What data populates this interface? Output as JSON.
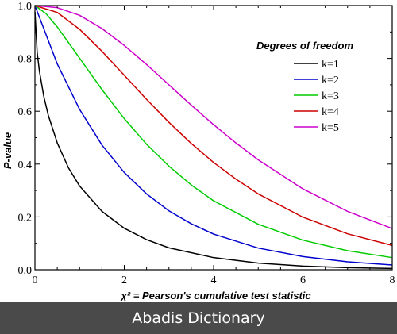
{
  "chart_data": {
    "type": "line",
    "xlabel": "χ² = Pearson's cumulative test statistic",
    "ylabel": "P-value",
    "xlim": [
      0,
      8
    ],
    "ylim": [
      0,
      1
    ],
    "x_ticks": [
      "0",
      "2",
      "4",
      "6",
      "8"
    ],
    "y_ticks": [
      "0.0",
      "0.2",
      "0.4",
      "0.6",
      "0.8",
      "1.0"
    ],
    "grid": false,
    "legend": {
      "title": "Degrees of freedom",
      "placement": "top-right"
    },
    "series": [
      {
        "name": "k=1",
        "color": "#000000",
        "x": [
          0.001,
          0.05,
          0.1,
          0.2,
          0.3,
          0.5,
          0.75,
          1,
          1.5,
          2,
          2.5,
          3,
          4,
          5,
          6,
          7,
          8
        ],
        "y": [
          0.975,
          0.823,
          0.752,
          0.655,
          0.584,
          0.48,
          0.386,
          0.317,
          0.221,
          0.157,
          0.114,
          0.083,
          0.046,
          0.025,
          0.014,
          0.008,
          0.005
        ]
      },
      {
        "name": "k=2",
        "color": "#0000cc",
        "x": [
          0,
          0.5,
          1,
          1.5,
          2,
          2.5,
          3,
          3.5,
          4,
          5,
          6,
          7,
          8
        ],
        "y": [
          1.0,
          0.779,
          0.607,
          0.472,
          0.368,
          0.287,
          0.223,
          0.174,
          0.135,
          0.082,
          0.05,
          0.03,
          0.018
        ]
      },
      {
        "name": "k=3",
        "color": "#00cc00",
        "x": [
          0,
          0.25,
          0.5,
          1,
          1.5,
          2,
          2.5,
          3,
          3.5,
          4,
          5,
          6,
          7,
          8
        ],
        "y": [
          1.0,
          0.969,
          0.919,
          0.801,
          0.682,
          0.572,
          0.475,
          0.392,
          0.321,
          0.261,
          0.172,
          0.112,
          0.072,
          0.046
        ]
      },
      {
        "name": "k=4",
        "color": "#cc0000",
        "x": [
          0,
          0.5,
          1,
          1.5,
          2,
          2.5,
          3,
          3.5,
          4,
          4.5,
          5,
          6,
          7,
          8
        ],
        "y": [
          1.0,
          0.974,
          0.91,
          0.827,
          0.736,
          0.645,
          0.558,
          0.478,
          0.406,
          0.343,
          0.287,
          0.199,
          0.136,
          0.092
        ]
      },
      {
        "name": "k=5",
        "color": "#cc00cc",
        "x": [
          0,
          0.5,
          1,
          1.5,
          2,
          2.5,
          3,
          3.5,
          4,
          4.5,
          5,
          6,
          7,
          8
        ],
        "y": [
          1.0,
          0.992,
          0.963,
          0.913,
          0.849,
          0.777,
          0.7,
          0.623,
          0.549,
          0.48,
          0.416,
          0.306,
          0.221,
          0.156
        ]
      }
    ]
  },
  "banner": {
    "text": "Abadis Dictionary"
  }
}
